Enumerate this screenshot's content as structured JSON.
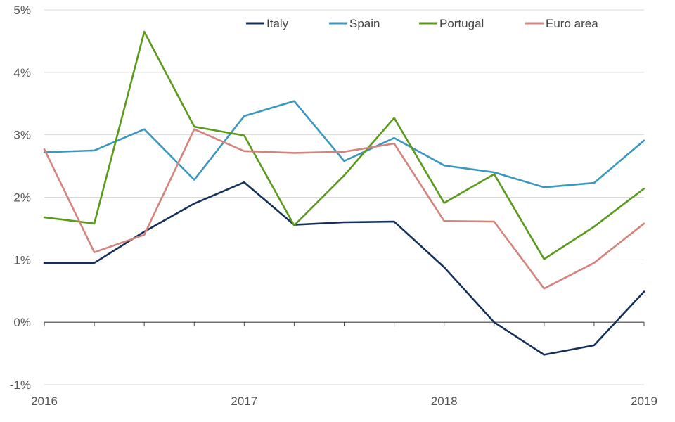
{
  "chart_data": {
    "type": "line",
    "title": "",
    "xlabel": "",
    "ylabel": "",
    "x": [
      2016.0,
      2016.25,
      2016.5,
      2016.75,
      2017.0,
      2017.25,
      2017.5,
      2017.75,
      2018.0,
      2018.25,
      2018.5,
      2018.75,
      2019.0
    ],
    "xlim": [
      2016,
      2019
    ],
    "x_ticks": [
      2016,
      2017,
      2018,
      2019
    ],
    "x_tick_labels": [
      "2016",
      "2017",
      "2018",
      "2019"
    ],
    "ylim": [
      -1,
      5
    ],
    "y_ticks": [
      -1,
      0,
      1,
      2,
      3,
      4,
      5
    ],
    "y_tick_labels": [
      "-1%",
      "0%",
      "1%",
      "2%",
      "3%",
      "4%",
      "5%"
    ],
    "grid": "horizontal",
    "legend_position": "top",
    "series": [
      {
        "name": "Italy",
        "color": "#14305a",
        "values": [
          0.95,
          0.95,
          1.45,
          1.9,
          2.24,
          1.56,
          1.6,
          1.61,
          0.88,
          0.0,
          -0.52,
          -0.37,
          0.49
        ]
      },
      {
        "name": "Spain",
        "color": "#3a97c0",
        "values": [
          2.72,
          2.75,
          3.09,
          2.28,
          3.3,
          3.54,
          2.58,
          2.95,
          2.51,
          2.4,
          2.16,
          2.23,
          2.91
        ]
      },
      {
        "name": "Portugal",
        "color": "#5a9a1a",
        "values": [
          1.68,
          1.58,
          4.65,
          3.13,
          2.99,
          1.55,
          2.35,
          3.27,
          1.91,
          2.37,
          1.01,
          1.53,
          2.14
        ]
      },
      {
        "name": "Euro area",
        "color": "#d4837d",
        "values": [
          2.77,
          1.12,
          1.4,
          3.09,
          2.74,
          2.71,
          2.73,
          2.86,
          1.62,
          1.61,
          0.54,
          0.95,
          1.58
        ]
      }
    ]
  }
}
